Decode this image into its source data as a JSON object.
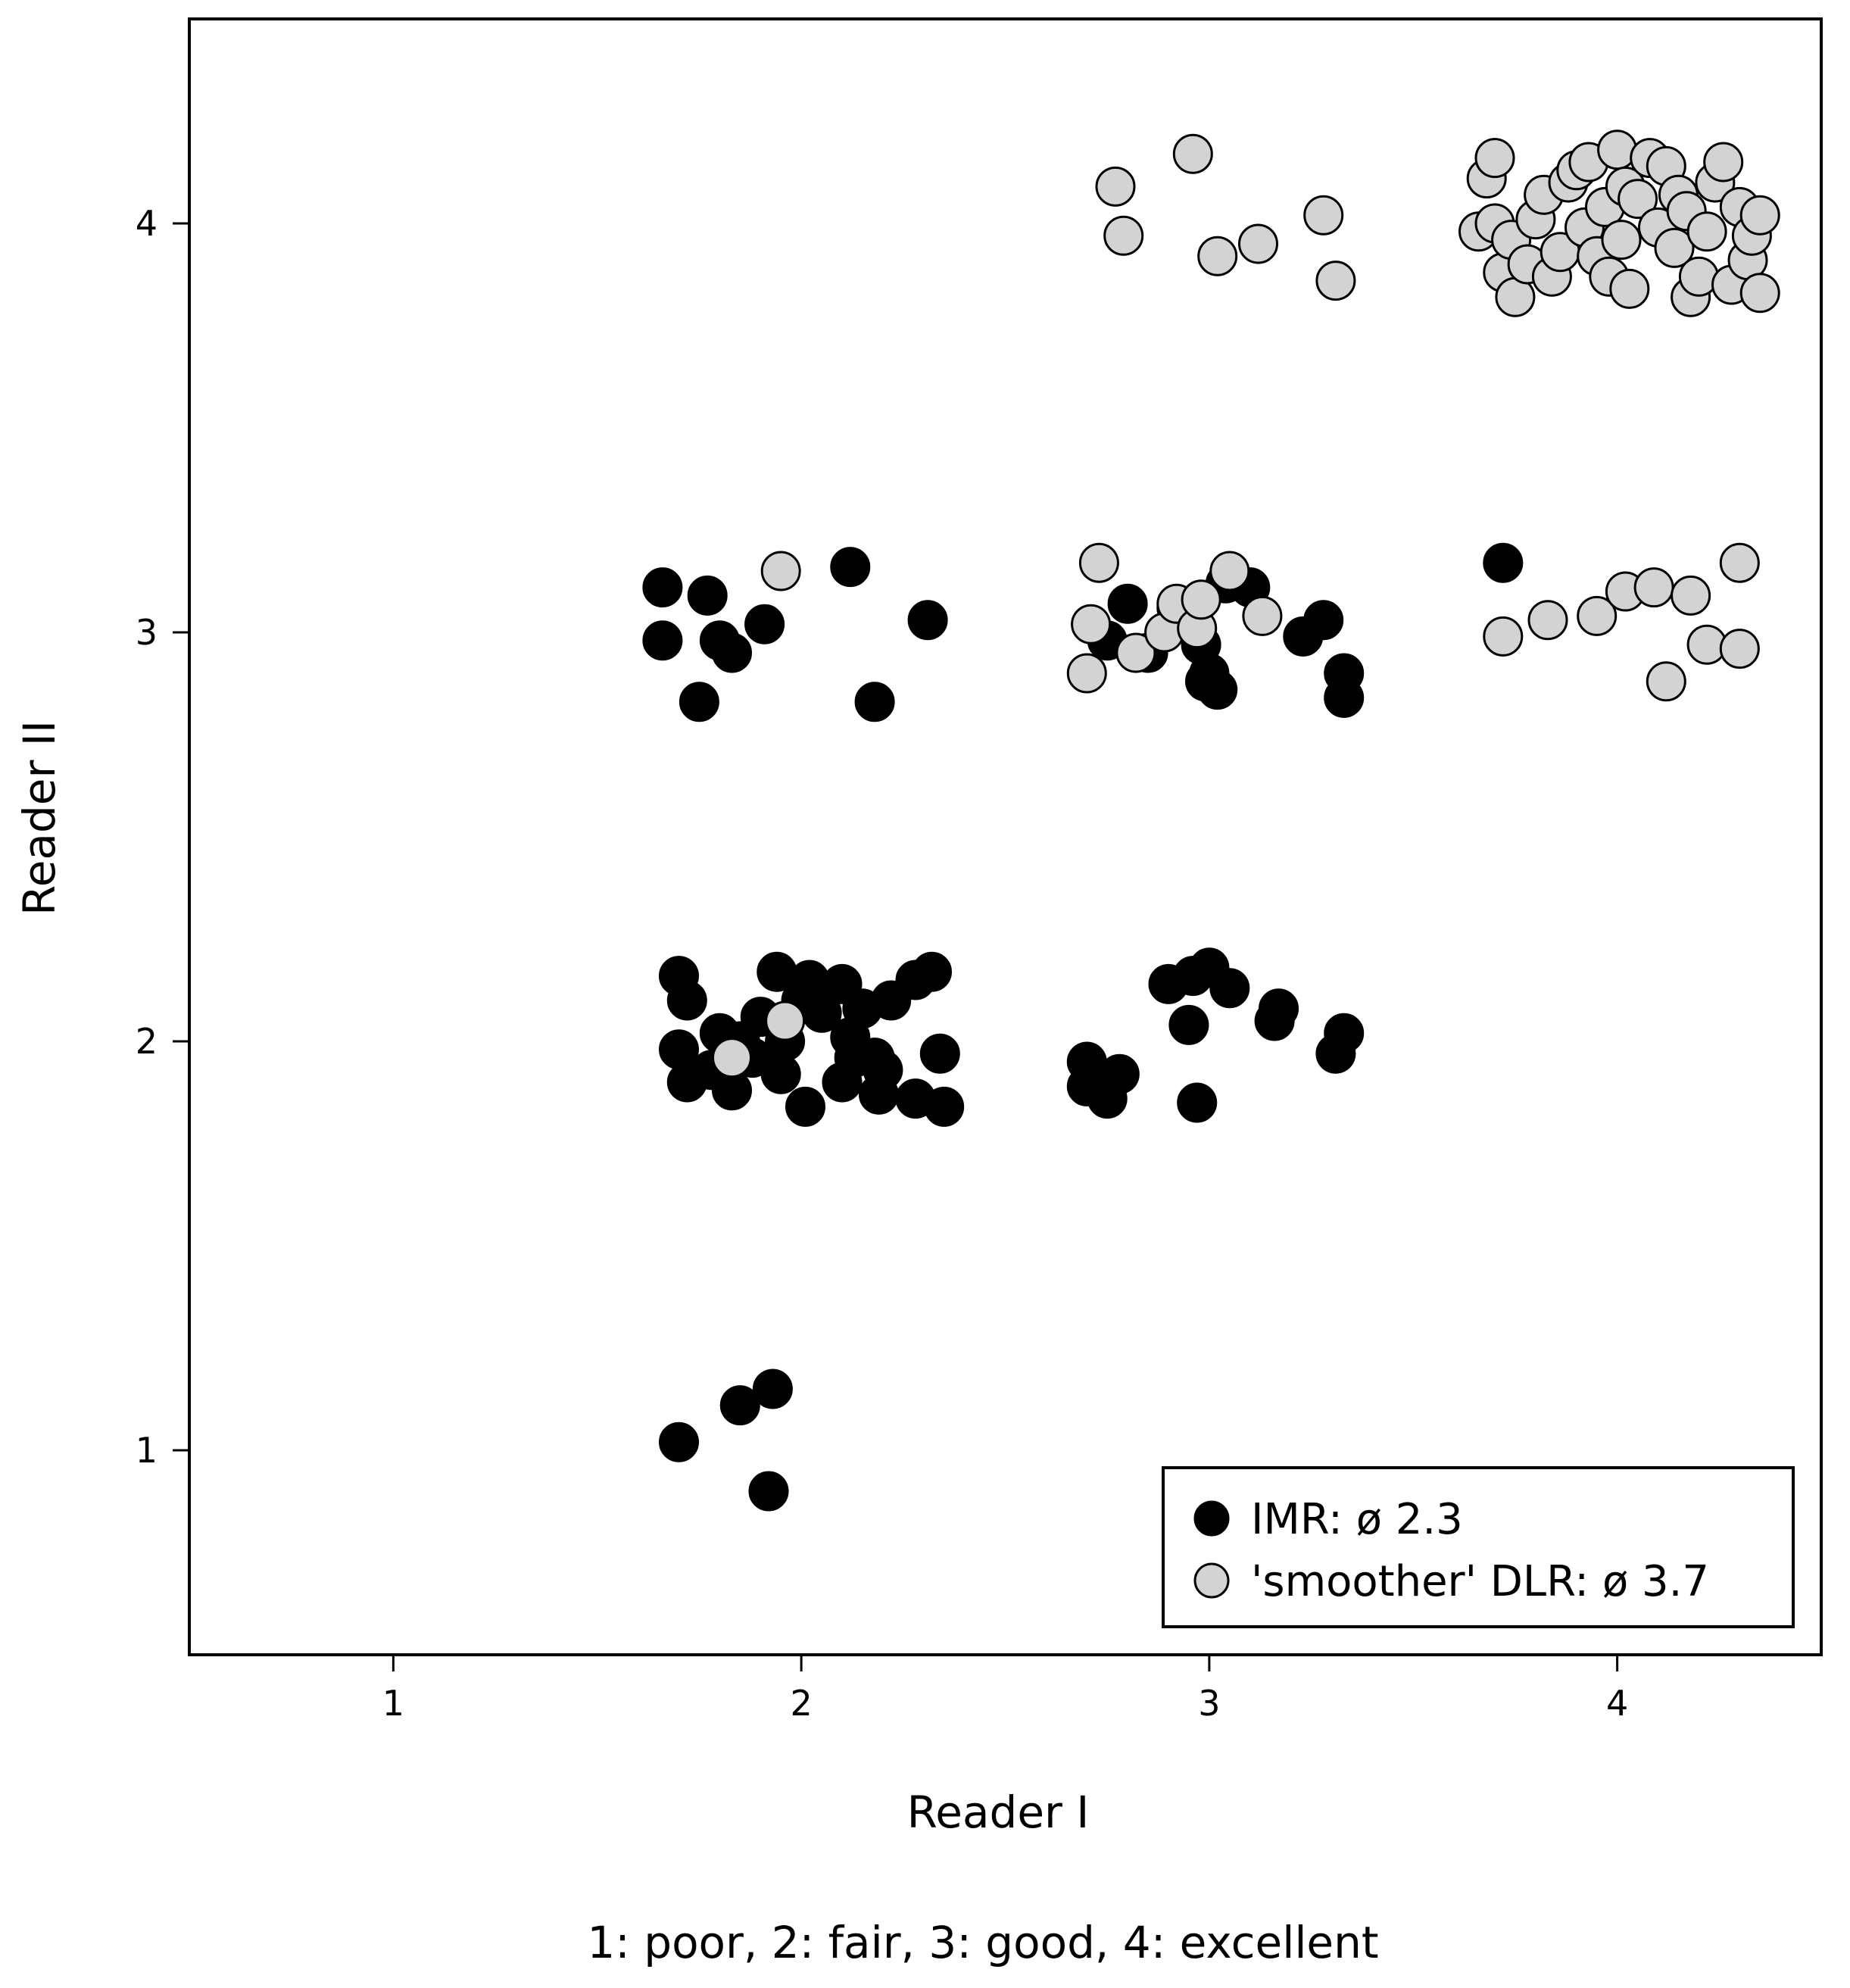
{
  "chart_data": {
    "type": "scatter",
    "title": "",
    "xlabel": "Reader I",
    "ylabel": "Reader II",
    "caption": "1: poor, 2: fair, 3: good, 4: excellent",
    "xlim": [
      0.5,
      4.5
    ],
    "ylim": [
      0.5,
      4.5
    ],
    "xticks": [
      "1",
      "2",
      "3",
      "4"
    ],
    "yticks": [
      "1",
      "2",
      "3",
      "4"
    ],
    "grid": false,
    "legend_position": "bottom-right",
    "series": [
      {
        "name": "IMR: ø 2.3",
        "color": "#000000",
        "points": [
          [
            1.7,
            1.02
          ],
          [
            1.85,
            1.11
          ],
          [
            1.93,
            1.15
          ],
          [
            1.92,
            0.9
          ],
          [
            1.7,
            2.16
          ],
          [
            1.72,
            2.1
          ],
          [
            1.7,
            1.98
          ],
          [
            1.72,
            1.9
          ],
          [
            1.78,
            1.93
          ],
          [
            1.8,
            2.02
          ],
          [
            1.85,
            2.0
          ],
          [
            1.83,
            1.88
          ],
          [
            1.88,
            1.96
          ],
          [
            1.9,
            2.06
          ],
          [
            1.94,
            2.17
          ],
          [
            1.96,
            2.0
          ],
          [
            1.95,
            1.92
          ],
          [
            2.0,
            2.1
          ],
          [
            2.02,
            2.15
          ],
          [
            2.05,
            2.07
          ],
          [
            2.01,
            1.84
          ],
          [
            2.1,
            2.14
          ],
          [
            2.12,
            2.01
          ],
          [
            2.13,
            1.96
          ],
          [
            2.1,
            1.9
          ],
          [
            2.15,
            2.08
          ],
          [
            2.18,
            1.96
          ],
          [
            2.2,
            1.93
          ],
          [
            2.19,
            1.87
          ],
          [
            2.22,
            2.1
          ],
          [
            2.28,
            2.15
          ],
          [
            2.32,
            2.17
          ],
          [
            2.28,
            1.86
          ],
          [
            2.34,
            1.97
          ],
          [
            2.35,
            1.84
          ],
          [
            2.7,
            1.95
          ],
          [
            2.7,
            1.89
          ],
          [
            2.75,
            1.86
          ],
          [
            2.78,
            1.92
          ],
          [
            2.9,
            2.14
          ],
          [
            2.96,
            2.16
          ],
          [
            3.0,
            2.18
          ],
          [
            3.05,
            2.13
          ],
          [
            2.95,
            2.04
          ],
          [
            2.97,
            1.85
          ],
          [
            3.17,
            2.08
          ],
          [
            3.16,
            2.05
          ],
          [
            3.33,
            2.02
          ],
          [
            3.31,
            1.97
          ],
          [
            1.66,
            3.11
          ],
          [
            1.77,
            3.09
          ],
          [
            1.66,
            2.98
          ],
          [
            1.8,
            2.98
          ],
          [
            1.83,
            2.95
          ],
          [
            1.91,
            3.02
          ],
          [
            1.75,
            2.83
          ],
          [
            2.12,
            3.16
          ],
          [
            2.31,
            3.03
          ],
          [
            2.18,
            2.83
          ],
          [
            2.8,
            3.07
          ],
          [
            2.75,
            2.98
          ],
          [
            2.85,
            2.95
          ],
          [
            2.92,
            3.06
          ],
          [
            2.98,
            2.97
          ],
          [
            3.0,
            2.9
          ],
          [
            3.02,
            2.86
          ],
          [
            2.99,
            2.88
          ],
          [
            3.04,
            3.12
          ],
          [
            3.1,
            3.11
          ],
          [
            3.23,
            2.99
          ],
          [
            3.28,
            3.03
          ],
          [
            3.33,
            2.9
          ],
          [
            3.33,
            2.84
          ],
          [
            3.72,
            3.17
          ]
        ]
      },
      {
        "name": "'smoother' DLR: ø 3.7",
        "color": "#d3d3d3",
        "points": [
          [
            1.83,
            1.96
          ],
          [
            1.96,
            2.05
          ],
          [
            1.95,
            3.15
          ],
          [
            2.77,
            4.09
          ],
          [
            2.79,
            3.97
          ],
          [
            2.96,
            4.17
          ],
          [
            3.02,
            3.92
          ],
          [
            3.12,
            3.95
          ],
          [
            3.28,
            4.02
          ],
          [
            3.31,
            3.86
          ],
          [
            2.73,
            3.17
          ],
          [
            2.71,
            3.02
          ],
          [
            2.7,
            2.9
          ],
          [
            2.82,
            2.95
          ],
          [
            2.89,
            3.0
          ],
          [
            2.92,
            3.07
          ],
          [
            2.97,
            3.01
          ],
          [
            2.98,
            3.08
          ],
          [
            3.05,
            3.15
          ],
          [
            3.13,
            3.04
          ],
          [
            3.72,
            2.99
          ],
          [
            3.83,
            3.03
          ],
          [
            3.95,
            3.04
          ],
          [
            4.02,
            3.1
          ],
          [
            4.09,
            3.11
          ],
          [
            4.18,
            3.09
          ],
          [
            4.3,
            3.17
          ],
          [
            4.12,
            2.88
          ],
          [
            4.22,
            2.97
          ],
          [
            4.3,
            2.96
          ],
          [
            3.66,
            3.98
          ],
          [
            3.68,
            4.11
          ],
          [
            3.7,
            4.16
          ],
          [
            3.7,
            4.0
          ],
          [
            3.72,
            3.88
          ],
          [
            3.74,
            3.96
          ],
          [
            3.75,
            3.82
          ],
          [
            3.78,
            3.9
          ],
          [
            3.8,
            4.01
          ],
          [
            3.82,
            4.07
          ],
          [
            3.84,
            3.87
          ],
          [
            3.86,
            3.93
          ],
          [
            3.88,
            4.1
          ],
          [
            3.9,
            4.13
          ],
          [
            3.92,
            3.99
          ],
          [
            3.93,
            4.15
          ],
          [
            3.95,
            3.92
          ],
          [
            3.97,
            4.04
          ],
          [
            3.98,
            3.87
          ],
          [
            4.0,
            4.18
          ],
          [
            4.01,
            3.96
          ],
          [
            4.02,
            4.09
          ],
          [
            4.03,
            3.84
          ],
          [
            4.05,
            4.06
          ],
          [
            4.08,
            4.16
          ],
          [
            4.1,
            3.99
          ],
          [
            4.12,
            4.14
          ],
          [
            4.14,
            3.94
          ],
          [
            4.15,
            4.07
          ],
          [
            4.17,
            4.03
          ],
          [
            4.18,
            3.82
          ],
          [
            4.2,
            3.87
          ],
          [
            4.22,
            3.98
          ],
          [
            4.24,
            4.1
          ],
          [
            4.26,
            4.15
          ],
          [
            4.28,
            3.85
          ],
          [
            4.3,
            4.04
          ],
          [
            4.32,
            3.91
          ],
          [
            4.33,
            3.97
          ],
          [
            4.35,
            3.83
          ],
          [
            4.35,
            4.02
          ]
        ]
      }
    ]
  }
}
